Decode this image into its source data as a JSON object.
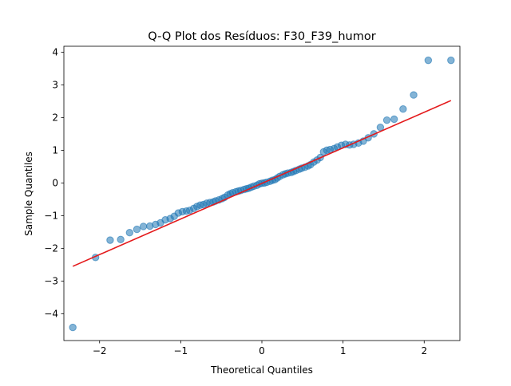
{
  "chart_data": {
    "type": "scatter",
    "title": "Q-Q Plot dos Resíduos: F30_F39_humor",
    "xlabel": "Theoretical Quantiles",
    "ylabel": "Sample Quantiles",
    "xlim": [
      -2.44,
      2.44
    ],
    "ylim": [
      -4.82,
      4.18
    ],
    "grid": false,
    "xticks": [
      -2,
      -1,
      0,
      1,
      2
    ],
    "xtick_labels": [
      "−2",
      "−1",
      "0",
      "1",
      "2"
    ],
    "yticks": [
      -4,
      -3,
      -2,
      -1,
      0,
      1,
      2,
      3,
      4
    ],
    "ytick_labels": [
      "−4",
      "−3",
      "−2",
      "−1",
      "0",
      "1",
      "2",
      "3",
      "4"
    ],
    "series": [
      {
        "kind": "points",
        "color": "#1f77b4",
        "x": [
          -2.33,
          -2.05,
          -1.87,
          -1.74,
          -1.63,
          -1.54,
          -1.46,
          -1.38,
          -1.31,
          -1.25,
          -1.19,
          -1.13,
          -1.08,
          -1.03,
          -0.98,
          -0.93,
          -0.89,
          -0.84,
          -0.8,
          -0.76,
          -0.72,
          -0.68,
          -0.64,
          -0.6,
          -0.57,
          -0.53,
          -0.49,
          -0.46,
          -0.42,
          -0.39,
          -0.36,
          -0.32,
          -0.29,
          -0.26,
          -0.22,
          -0.19,
          -0.16,
          -0.13,
          -0.1,
          -0.06,
          -0.03,
          0.0,
          0.03,
          0.06,
          0.1,
          0.13,
          0.16,
          0.19,
          0.22,
          0.26,
          0.29,
          0.32,
          0.36,
          0.39,
          0.42,
          0.46,
          0.49,
          0.53,
          0.57,
          0.6,
          0.64,
          0.68,
          0.72,
          0.76,
          0.8,
          0.84,
          0.89,
          0.93,
          0.98,
          1.03,
          1.08,
          1.13,
          1.19,
          1.25,
          1.31,
          1.38,
          1.46,
          1.54,
          1.63,
          1.74,
          1.87,
          2.05,
          2.33
        ],
        "y": [
          -4.42,
          -2.28,
          -1.75,
          -1.73,
          -1.52,
          -1.42,
          -1.33,
          -1.32,
          -1.27,
          -1.22,
          -1.13,
          -1.09,
          -1.02,
          -0.92,
          -0.88,
          -0.86,
          -0.84,
          -0.78,
          -0.72,
          -0.68,
          -0.66,
          -0.62,
          -0.6,
          -0.58,
          -0.55,
          -0.52,
          -0.48,
          -0.44,
          -0.37,
          -0.33,
          -0.3,
          -0.27,
          -0.25,
          -0.23,
          -0.2,
          -0.18,
          -0.16,
          -0.13,
          -0.1,
          -0.07,
          -0.03,
          -0.01,
          0.0,
          0.02,
          0.05,
          0.08,
          0.1,
          0.15,
          0.2,
          0.25,
          0.28,
          0.3,
          0.32,
          0.35,
          0.38,
          0.42,
          0.45,
          0.48,
          0.52,
          0.56,
          0.64,
          0.7,
          0.78,
          0.95,
          1.0,
          1.02,
          1.05,
          1.1,
          1.15,
          1.18,
          1.16,
          1.18,
          1.22,
          1.28,
          1.38,
          1.5,
          1.7,
          1.92,
          1.95,
          2.26,
          2.69,
          3.75,
          3.75
        ]
      },
      {
        "kind": "line",
        "color": "#e41a1c",
        "x": [
          -2.33,
          2.33
        ],
        "y": [
          -2.55,
          2.52
        ]
      }
    ]
  }
}
